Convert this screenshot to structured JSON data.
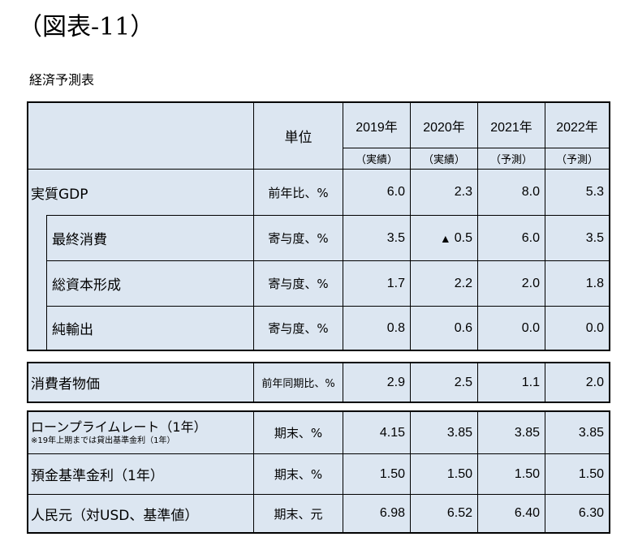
{
  "figure_title": "（図表-11）",
  "table_title": "経済予測表",
  "header": {
    "unit_label": "単位",
    "years": [
      {
        "year": "2019年",
        "kind": "（実績）"
      },
      {
        "year": "2020年",
        "kind": "（実績）"
      },
      {
        "year": "2021年",
        "kind": "（予測）"
      },
      {
        "year": "2022年",
        "kind": "（予測）"
      }
    ]
  },
  "gdp_rows": [
    {
      "label": "実質GDP",
      "unit": "前年比、%",
      "values": [
        "6.0",
        "2.3",
        "8.0",
        "5.3"
      ]
    },
    {
      "label": "最終消費",
      "unit": "寄与度、%",
      "values": [
        "3.5",
        "0.5",
        "6.0",
        "3.5"
      ],
      "negative_marker": "▲"
    },
    {
      "label": "総資本形成",
      "unit": "寄与度、%",
      "values": [
        "1.7",
        "2.2",
        "2.0",
        "1.8"
      ]
    },
    {
      "label": "純輸出",
      "unit": "寄与度、%",
      "values": [
        "0.8",
        "0.6",
        "0.0",
        "0.0"
      ]
    }
  ],
  "cpi_row": {
    "label": "消費者物価",
    "unit": "前年同期比、%",
    "values": [
      "2.9",
      "2.5",
      "1.1",
      "2.0"
    ]
  },
  "finance_rows": [
    {
      "label": "ローンプライムレート（1年）",
      "note": "※19年上期までは貸出基準金利（1年）",
      "unit": "期末、%",
      "values": [
        "4.15",
        "3.85",
        "3.85",
        "3.85"
      ]
    },
    {
      "label": "預金基準金利（1年）",
      "unit": "期末、%",
      "values": [
        "1.50",
        "1.50",
        "1.50",
        "1.50"
      ]
    },
    {
      "label": "人民元（対USD、基準値）",
      "unit": "期末、元",
      "values": [
        "6.98",
        "6.52",
        "6.40",
        "6.30"
      ]
    }
  ],
  "colors": {
    "cell_background": "#dce6f1",
    "border": "#000000"
  }
}
